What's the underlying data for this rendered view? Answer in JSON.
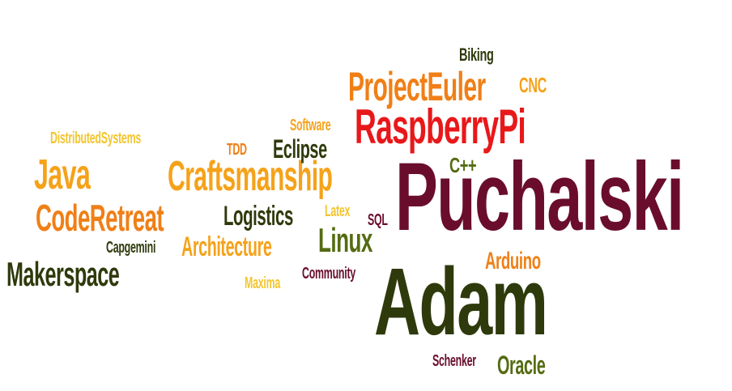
{
  "words": {
    "puchalski": "Puchalski",
    "adam": "Adam",
    "raspberrypi": "RaspberryPi",
    "projecteuler": "ProjectEuler",
    "craftsmanship": "Craftsmanship",
    "codereetreat": "CodeRetreat",
    "java": "Java",
    "makerspace": "Makerspace",
    "linux": "Linux",
    "logistics": "Logistics",
    "architecture": "Architecture",
    "eclipse": "Eclipse",
    "arduino": "Arduino",
    "oracle": "Oracle",
    "cpp": "C++",
    "cnc": "CNC",
    "distributed": "DistributedSystems",
    "software": "Software",
    "tdd": "TDD",
    "biking": "Biking",
    "latex": "Latex",
    "sql": "SQL",
    "capgemini": "Capgemini",
    "community": "Community",
    "maxima": "Maxima",
    "schenker": "Schenker"
  },
  "colors": {
    "orange": "#f07f16",
    "gold": "#f5a21a",
    "yellow": "#f3c52e",
    "red": "#e8181a",
    "maroon": "#6a0d2d",
    "olive": "#556b12",
    "dark": "#2f3a0c",
    "background": "#ffffff"
  }
}
